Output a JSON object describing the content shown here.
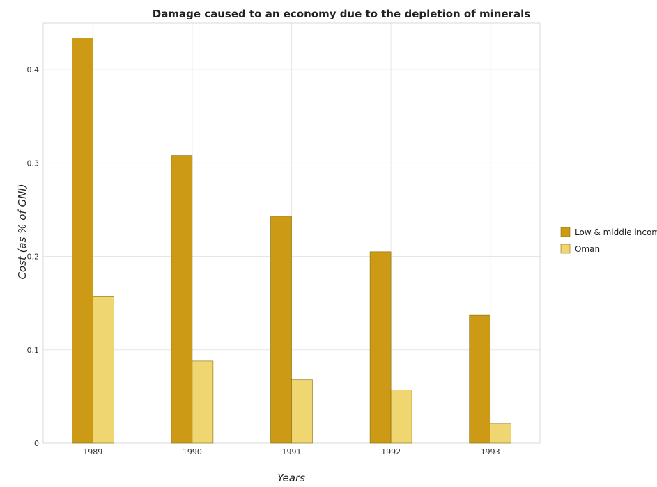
{
  "chart_data": {
    "type": "bar",
    "title": "Damage caused to an economy due to the depletion of minerals",
    "xlabel": "Years",
    "ylabel": "Cost (as % of GNI)",
    "categories": [
      "1989",
      "1990",
      "1991",
      "1992",
      "1993"
    ],
    "series": [
      {
        "name": "Low & middle income",
        "values": [
          0.434,
          0.308,
          0.243,
          0.205,
          0.137
        ],
        "color": "#cc9a14"
      },
      {
        "name": "Oman",
        "values": [
          0.157,
          0.088,
          0.068,
          0.057,
          0.021
        ],
        "color": "#f0d670"
      }
    ],
    "ylim": [
      0,
      0.45
    ],
    "yticks": [
      0,
      0.1,
      0.2,
      0.3,
      0.4
    ],
    "ytick_labels": [
      "0",
      "0.1",
      "0.2",
      "0.3",
      "0.4"
    ],
    "grid": true,
    "legend_position": "right"
  }
}
